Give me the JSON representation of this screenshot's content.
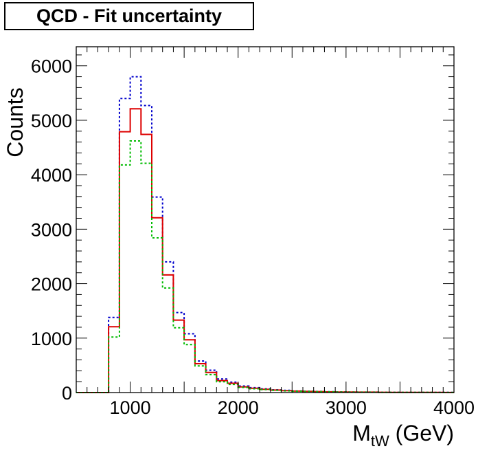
{
  "chart_data": {
    "type": "histogram",
    "title": "QCD - Fit uncertainty",
    "ylabel": "Counts",
    "xlabel": {
      "main": "M",
      "sub": "tW",
      "unit": " (GeV)"
    },
    "xlim": [
      500,
      4000
    ],
    "ylim": [
      0,
      6350
    ],
    "x_ticks": [
      1000,
      2000,
      3000,
      4000
    ],
    "y_ticks": [
      0,
      1000,
      2000,
      3000,
      4000,
      5000,
      6000
    ],
    "bin_edges": [
      500,
      600,
      700,
      800,
      900,
      1000,
      1100,
      1200,
      1300,
      1400,
      1500,
      1600,
      1700,
      1800,
      1900,
      2000,
      2100,
      2200,
      2300,
      2400,
      2500,
      2600,
      2700,
      2800,
      2900,
      3000,
      3100,
      3200,
      3300,
      3400,
      3500,
      3600,
      3700,
      3800,
      3900,
      4000
    ],
    "series": [
      {
        "color": "#0000cc",
        "style": "dotted",
        "values": [
          0,
          0,
          0,
          1380,
          5400,
          5800,
          5270,
          3590,
          2400,
          1470,
          1080,
          580,
          410,
          250,
          190,
          120,
          90,
          70,
          50,
          40,
          30,
          25,
          20,
          15,
          12,
          10,
          8,
          8,
          6,
          5,
          4,
          3,
          3,
          2,
          2
        ]
      },
      {
        "color": "#dd0000",
        "style": "solid",
        "values": [
          0,
          0,
          0,
          1210,
          4790,
          5210,
          4740,
          3210,
          2160,
          1330,
          970,
          530,
          370,
          220,
          170,
          105,
          80,
          60,
          45,
          35,
          27,
          22,
          18,
          13,
          10,
          9,
          7,
          7,
          5,
          4,
          3,
          3,
          2,
          2,
          1
        ]
      },
      {
        "color": "#00bb00",
        "style": "dotted",
        "values": [
          0,
          0,
          0,
          1020,
          4180,
          4620,
          4210,
          2840,
          1920,
          1190,
          880,
          490,
          330,
          200,
          150,
          95,
          70,
          55,
          40,
          30,
          24,
          20,
          16,
          12,
          9,
          8,
          6,
          6,
          4,
          4,
          3,
          2,
          2,
          1,
          1
        ]
      }
    ]
  }
}
